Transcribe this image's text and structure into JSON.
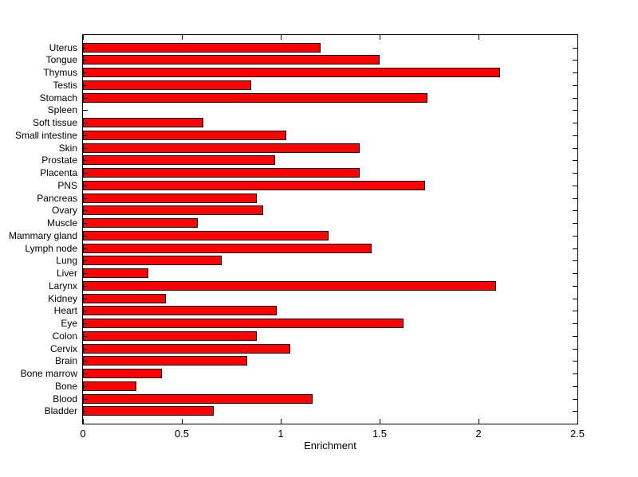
{
  "chart_data": {
    "type": "bar",
    "orientation": "horizontal",
    "title": "",
    "xlabel": "Enrichment",
    "ylabel": "",
    "xlim": [
      0,
      2.5
    ],
    "xticks": [
      0,
      0.5,
      1,
      1.5,
      2,
      2.5
    ],
    "xtick_labels": [
      "0",
      "0.5",
      "1",
      "1.5",
      "2",
      "2.5"
    ],
    "grid": false,
    "legend": "none",
    "categories_top_to_bottom": [
      "Uterus",
      "Tongue",
      "Thymus",
      "Testis",
      "Stomach",
      "Spleen",
      "Soft tissue",
      "Small intestine",
      "Skin",
      "Prostate",
      "Placenta",
      "PNS",
      "Pancreas",
      "Ovary",
      "Muscle",
      "Mammary gland",
      "Lymph node",
      "Lung",
      "Liver",
      "Larynx",
      "Kidney",
      "Heart",
      "Eye",
      "Colon",
      "Cervix",
      "Brain",
      "Bone marrow",
      "Bone",
      "Blood",
      "Bladder"
    ],
    "values": [
      1.2,
      1.5,
      2.11,
      0.85,
      1.74,
      0.0,
      0.61,
      1.03,
      1.4,
      0.97,
      1.4,
      1.73,
      0.88,
      0.91,
      0.58,
      1.24,
      1.46,
      0.7,
      0.33,
      2.09,
      0.42,
      0.98,
      1.62,
      0.88,
      1.05,
      0.83,
      0.4,
      0.27,
      1.16,
      0.66
    ],
    "colors": {
      "bar_fill": "#FF0000",
      "bar_edge": "#000000",
      "axis": "#000000",
      "text": "#000000",
      "background": "#FFFFFF"
    }
  }
}
